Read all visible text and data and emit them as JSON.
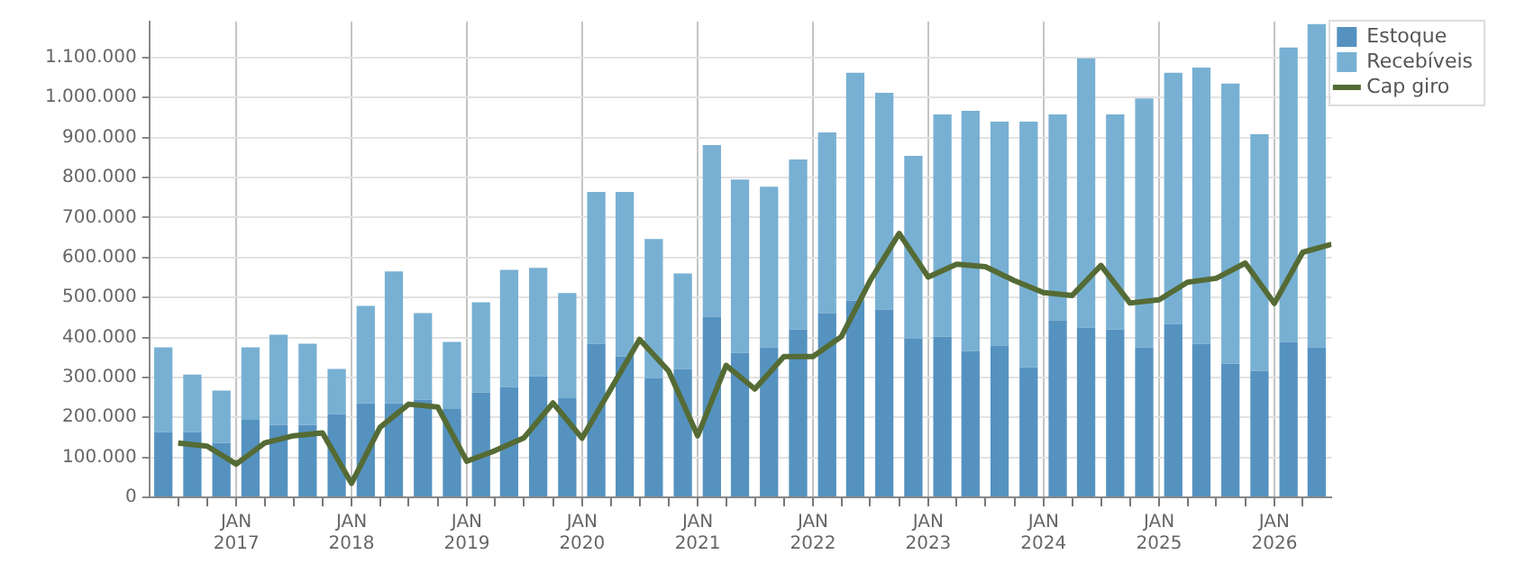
{
  "chart_data": {
    "type": "bar",
    "stacked": true,
    "legend": "right",
    "grid": true,
    "x": [
      "2016-05-15",
      "2016-08-15",
      "2016-11-15",
      "2017-02-15",
      "2017-05-15",
      "2017-08-15",
      "2017-11-15",
      "2018-02-15",
      "2018-05-15",
      "2018-08-15",
      "2018-11-15",
      "2019-02-15",
      "2019-05-15",
      "2019-08-15",
      "2019-11-15",
      "2020-02-15",
      "2020-05-15",
      "2020-08-15",
      "2020-11-15",
      "2021-02-15",
      "2021-05-15",
      "2021-08-15",
      "2021-11-15",
      "2022-02-15",
      "2022-05-15",
      "2022-08-15",
      "2022-11-15",
      "2023-02-15",
      "2023-05-15",
      "2023-08-15",
      "2023-11-15",
      "2024-02-15",
      "2024-05-15",
      "2024-08-15",
      "2024-11-15",
      "2025-02-15",
      "2025-05-15",
      "2025-08-15",
      "2025-11-15",
      "2026-02-15",
      "2026-05-15"
    ],
    "series": [
      {
        "name": "Estoque",
        "color": "#5592c0",
        "values": [
          163000,
          163000,
          136000,
          194000,
          181000,
          181000,
          208000,
          235000,
          235000,
          244000,
          221000,
          262000,
          276000,
          303000,
          248000,
          384000,
          352000,
          298000,
          321000,
          452000,
          361000,
          375000,
          420000,
          461000,
          492000,
          470000,
          398000,
          402000,
          366000,
          380000,
          325000,
          443000,
          425000,
          420000,
          375000,
          434000,
          384000,
          334000,
          316000,
          389000,
          375000
        ]
      },
      {
        "name": "Recebíveis",
        "color": "#78b0d3",
        "values": [
          212000,
          144000,
          131000,
          181000,
          226000,
          203000,
          113000,
          244000,
          330000,
          217000,
          168000,
          226000,
          293000,
          271000,
          263000,
          380000,
          412000,
          348000,
          239000,
          429000,
          434000,
          402000,
          425000,
          452000,
          570000,
          542000,
          456000,
          556000,
          601000,
          560000,
          615000,
          515000,
          673000,
          538000,
          623000,
          628000,
          691000,
          701000,
          592000,
          736000,
          809000
        ]
      },
      {
        "name": "Cap giro",
        "type": "line",
        "color": "#556b35",
        "marker": "none",
        "line_style": "solid",
        "x": [
          "2016-07-01",
          "2016-10-01",
          "2017-01-01",
          "2017-04-01",
          "2017-07-01",
          "2017-10-01",
          "2018-01-01",
          "2018-04-01",
          "2018-07-01",
          "2018-10-01",
          "2019-01-01",
          "2019-04-01",
          "2019-07-01",
          "2019-10-01",
          "2020-01-01",
          "2020-04-01",
          "2020-07-01",
          "2020-10-01",
          "2021-01-01",
          "2021-04-01",
          "2021-07-01",
          "2021-10-01",
          "2022-01-01",
          "2022-04-01",
          "2022-07-01",
          "2022-10-01",
          "2023-01-01",
          "2023-04-01",
          "2023-07-01",
          "2023-10-01",
          "2024-01-01",
          "2024-04-01",
          "2024-07-01",
          "2024-10-01",
          "2025-01-01",
          "2025-04-01",
          "2025-07-01",
          "2025-10-01",
          "2026-01-01",
          "2026-04-01",
          "2026-07-01"
        ],
        "values": [
          136000,
          128000,
          83000,
          136000,
          154000,
          161000,
          35000,
          175000,
          233000,
          226000,
          90000,
          117000,
          149000,
          236000,
          148000,
          271000,
          395000,
          316000,
          154000,
          330000,
          271000,
          352000,
          352000,
          402000,
          542000,
          660000,
          551000,
          583000,
          577000,
          542000,
          512000,
          505000,
          580000,
          486000,
          494000,
          538000,
          548000,
          586000,
          485000,
          613000,
          633000
        ]
      }
    ],
    "xlim": [
      "2016-04-01",
      "2026-07-01"
    ],
    "xticks": [
      {
        "value": "2016-07-01",
        "label": null
      },
      {
        "value": "2016-10-01",
        "label": null
      },
      {
        "value": "2017-01-01",
        "label": "JAN 2017"
      },
      {
        "value": "2017-04-01",
        "label": null
      },
      {
        "value": "2017-07-01",
        "label": null
      },
      {
        "value": "2017-10-01",
        "label": null
      },
      {
        "value": "2018-01-01",
        "label": "JAN 2018"
      },
      {
        "value": "2018-04-01",
        "label": null
      },
      {
        "value": "2018-07-01",
        "label": null
      },
      {
        "value": "2018-10-01",
        "label": null
      },
      {
        "value": "2019-01-01",
        "label": "JAN 2019"
      },
      {
        "value": "2019-04-01",
        "label": null
      },
      {
        "value": "2019-07-01",
        "label": null
      },
      {
        "value": "2019-10-01",
        "label": null
      },
      {
        "value": "2020-01-01",
        "label": "JAN 2020"
      },
      {
        "value": "2020-04-01",
        "label": null
      },
      {
        "value": "2020-07-01",
        "label": null
      },
      {
        "value": "2020-10-01",
        "label": null
      },
      {
        "value": "2021-01-01",
        "label": "JAN 2021"
      },
      {
        "value": "2021-04-01",
        "label": null
      },
      {
        "value": "2021-07-01",
        "label": null
      },
      {
        "value": "2021-10-01",
        "label": null
      },
      {
        "value": "2022-01-01",
        "label": "JAN 2022"
      },
      {
        "value": "2022-04-01",
        "label": null
      },
      {
        "value": "2022-07-01",
        "label": null
      },
      {
        "value": "2022-10-01",
        "label": null
      },
      {
        "value": "2023-01-01",
        "label": "JAN 2023"
      },
      {
        "value": "2023-04-01",
        "label": null
      },
      {
        "value": "2023-07-01",
        "label": null
      },
      {
        "value": "2023-10-01",
        "label": null
      },
      {
        "value": "2024-01-01",
        "label": "JAN 2024"
      },
      {
        "value": "2024-04-01",
        "label": null
      },
      {
        "value": "2024-07-01",
        "label": null
      },
      {
        "value": "2024-10-01",
        "label": null
      },
      {
        "value": "2025-01-01",
        "label": "JAN 2025"
      },
      {
        "value": "2025-04-01",
        "label": null
      },
      {
        "value": "2025-07-01",
        "label": null
      },
      {
        "value": "2025-10-01",
        "label": null
      },
      {
        "value": "2026-01-01",
        "label": "JAN 2026"
      },
      {
        "value": "2026-04-01",
        "label": null
      }
    ],
    "ylim": [
      0,
      1190000
    ],
    "yticks": [
      0,
      {
        "value": 100000,
        "label": "100.000"
      },
      {
        "value": 200000,
        "label": "200.000"
      },
      {
        "value": 300000,
        "label": "300.000"
      },
      {
        "value": 400000,
        "label": "400.000"
      },
      {
        "value": 500000,
        "label": "500.000"
      },
      {
        "value": 600000,
        "label": "600.000"
      },
      {
        "value": 700000,
        "label": "700.000"
      },
      {
        "value": 800000,
        "label": "800.000"
      },
      {
        "value": 900000,
        "label": "900.000"
      },
      {
        "value": 1000000,
        "label": "1.000.000"
      },
      {
        "value": 1100000,
        "label": "1.100.000"
      }
    ]
  }
}
